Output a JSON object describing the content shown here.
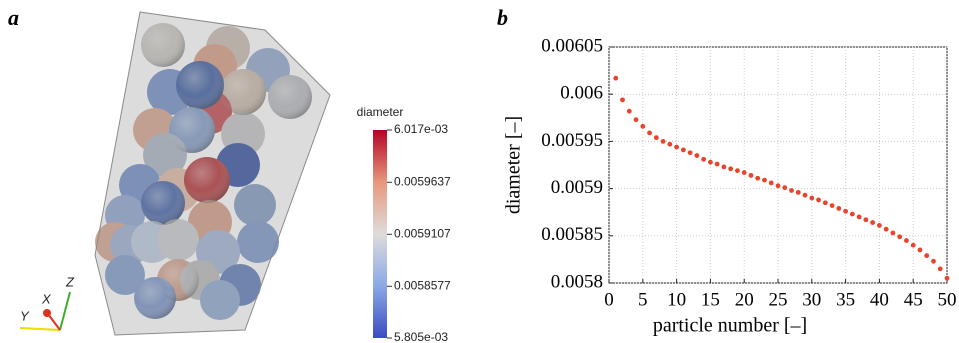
{
  "panel_a": {
    "label": "a",
    "colorbar": {
      "title": "diameter",
      "ticks": [
        {
          "value": 0.006017,
          "label": "6.017e-03"
        },
        0.0059637,
        0.0059107,
        0.0058577,
        {
          "value": 0.005805,
          "label": "5.805e-03"
        }
      ]
    },
    "axes": {
      "x": "X",
      "y": "Y",
      "z": "Z"
    }
  },
  "chart_data": {
    "type": "scatter",
    "label": "b",
    "xlabel": "particle number [–]",
    "ylabel": "diameter [–]",
    "x": [
      1,
      2,
      3,
      4,
      5,
      6,
      7,
      8,
      9,
      10,
      11,
      12,
      13,
      14,
      15,
      16,
      17,
      18,
      19,
      20,
      21,
      22,
      23,
      24,
      25,
      26,
      27,
      28,
      29,
      30,
      31,
      32,
      33,
      34,
      35,
      36,
      37,
      38,
      39,
      40,
      41,
      42,
      43,
      44,
      45,
      46,
      47,
      48,
      49,
      50
    ],
    "values": [
      0.006017,
      0.005994,
      0.005982,
      0.005973,
      0.005966,
      0.005959,
      0.005954,
      0.00595,
      0.005947,
      0.005944,
      0.005941,
      0.005938,
      0.005935,
      0.005931,
      0.005928,
      0.005926,
      0.005923,
      0.005921,
      0.005919,
      0.005917,
      0.005914,
      0.005911,
      0.005909,
      0.005906,
      0.005903,
      0.005901,
      0.005898,
      0.005896,
      0.005893,
      0.00589,
      0.005888,
      0.005885,
      0.005882,
      0.005879,
      0.005876,
      0.005873,
      0.00587,
      0.005867,
      0.005864,
      0.005861,
      0.005857,
      0.005853,
      0.005849,
      0.005845,
      0.00584,
      0.005835,
      0.005829,
      0.005823,
      0.005815,
      0.005805
    ],
    "color": "#e8432b",
    "xlim": [
      0,
      50
    ],
    "xticks": [
      0,
      5,
      10,
      15,
      20,
      25,
      30,
      35,
      40,
      45,
      50
    ],
    "ylim": [
      0.0058,
      0.00605
    ],
    "yticks": [
      0.0058,
      0.00585,
      0.0059,
      0.00595,
      0.006,
      0.00605
    ],
    "grid": true
  }
}
